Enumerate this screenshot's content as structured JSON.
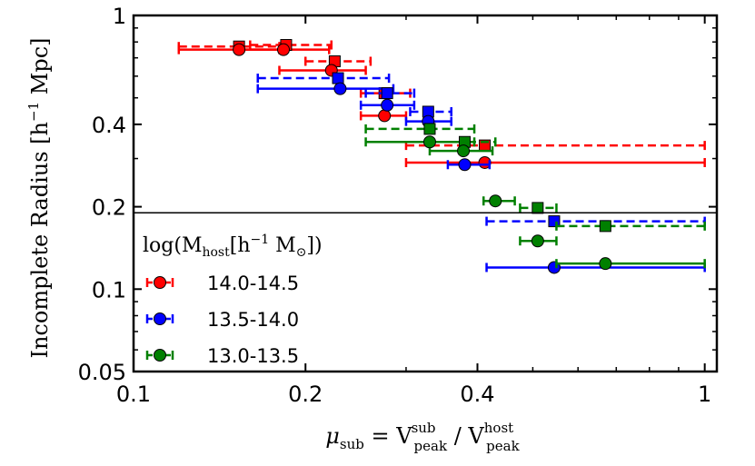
{
  "chart_data": {
    "type": "scatter",
    "title": "",
    "xlabel": {
      "main": "μ",
      "sub": "sub",
      "eq": " = V",
      "sup1": "sub",
      "sub1": "peak",
      "slash": " / V",
      "sup2": "host",
      "sub2": "peak"
    },
    "ylabel": {
      "main": "Incomplete Radius ",
      "bracket": "[h",
      "exp": "−1",
      "unit": " Mpc]"
    },
    "xscale": "log",
    "yscale": "log",
    "xlim": [
      0.1,
      1.05
    ],
    "ylim": [
      0.05,
      1.0
    ],
    "xticks": [
      0.1,
      0.2,
      0.4,
      1
    ],
    "xtick_labels": [
      "0.1",
      "0.2",
      "0.4",
      "1"
    ],
    "yticks": [
      0.05,
      0.1,
      0.2,
      0.4,
      1
    ],
    "ytick_labels": [
      "0.05",
      "0.1",
      "0.2",
      "0.4",
      "1"
    ],
    "hline_y": 0.19,
    "legend": {
      "position": "bottom-left",
      "title": {
        "main": "log(M",
        "sub": "host",
        "bracket": "[h",
        "exp": "−1",
        "m": " M",
        "sun": "⊙",
        "close": "])"
      }
    },
    "series": [
      {
        "name": "14.0-14.5",
        "color": "#ff0000",
        "circles": [
          {
            "x": 0.153,
            "y": 0.75,
            "xlo": 0.12,
            "xhi": 0.18
          },
          {
            "x": 0.183,
            "y": 0.75,
            "xlo": 0.155,
            "xhi": 0.22
          },
          {
            "x": 0.222,
            "y": 0.63,
            "xlo": 0.18,
            "xhi": 0.255
          },
          {
            "x": 0.275,
            "y": 0.43,
            "xlo": 0.25,
            "xhi": 0.3
          },
          {
            "x": 0.412,
            "y": 0.29,
            "xlo": 0.3,
            "xhi": 1.0
          }
        ],
        "squares": [
          {
            "x": 0.153,
            "y": 0.77,
            "xlo": 0.12,
            "xhi": 0.18
          },
          {
            "x": 0.185,
            "y": 0.78,
            "xlo": 0.16,
            "xhi": 0.222
          },
          {
            "x": 0.225,
            "y": 0.68,
            "xlo": 0.2,
            "xhi": 0.26
          },
          {
            "x": 0.275,
            "y": 0.52,
            "xlo": 0.25,
            "xhi": 0.305
          },
          {
            "x": 0.412,
            "y": 0.335,
            "xlo": 0.3,
            "xhi": 1.0
          }
        ]
      },
      {
        "name": "13.5-14.0",
        "color": "#0000ff",
        "circles": [
          {
            "x": 0.23,
            "y": 0.54,
            "xlo": 0.165,
            "xhi": 0.285
          },
          {
            "x": 0.278,
            "y": 0.47,
            "xlo": 0.25,
            "xhi": 0.31
          },
          {
            "x": 0.328,
            "y": 0.41,
            "xlo": 0.3,
            "xhi": 0.36
          },
          {
            "x": 0.38,
            "y": 0.285,
            "xlo": 0.355,
            "xhi": 0.42
          },
          {
            "x": 0.545,
            "y": 0.12,
            "xlo": 0.415,
            "xhi": 1.0
          }
        ],
        "squares": [
          {
            "x": 0.228,
            "y": 0.59,
            "xlo": 0.165,
            "xhi": 0.28
          },
          {
            "x": 0.278,
            "y": 0.52,
            "xlo": 0.255,
            "xhi": 0.31
          },
          {
            "x": 0.328,
            "y": 0.445,
            "xlo": 0.305,
            "xhi": 0.36
          },
          {
            "x": 0.545,
            "y": 0.177,
            "xlo": 0.415,
            "xhi": 1.0
          }
        ]
      },
      {
        "name": "13.0-13.5",
        "color": "#008000",
        "circles": [
          {
            "x": 0.33,
            "y": 0.345,
            "xlo": 0.255,
            "xhi": 0.395
          },
          {
            "x": 0.378,
            "y": 0.32,
            "xlo": 0.33,
            "xhi": 0.425
          },
          {
            "x": 0.43,
            "y": 0.21,
            "xlo": 0.41,
            "xhi": 0.465
          },
          {
            "x": 0.51,
            "y": 0.15,
            "xlo": 0.475,
            "xhi": 0.55
          },
          {
            "x": 0.67,
            "y": 0.124,
            "xlo": 0.55,
            "xhi": 1.0
          }
        ],
        "squares": [
          {
            "x": 0.33,
            "y": 0.385,
            "xlo": 0.255,
            "xhi": 0.395
          },
          {
            "x": 0.38,
            "y": 0.345,
            "xlo": 0.33,
            "xhi": 0.43
          },
          {
            "x": 0.51,
            "y": 0.198,
            "xlo": 0.475,
            "xhi": 0.55
          },
          {
            "x": 0.67,
            "y": 0.17,
            "xlo": 0.55,
            "xhi": 1.0
          }
        ]
      }
    ]
  }
}
